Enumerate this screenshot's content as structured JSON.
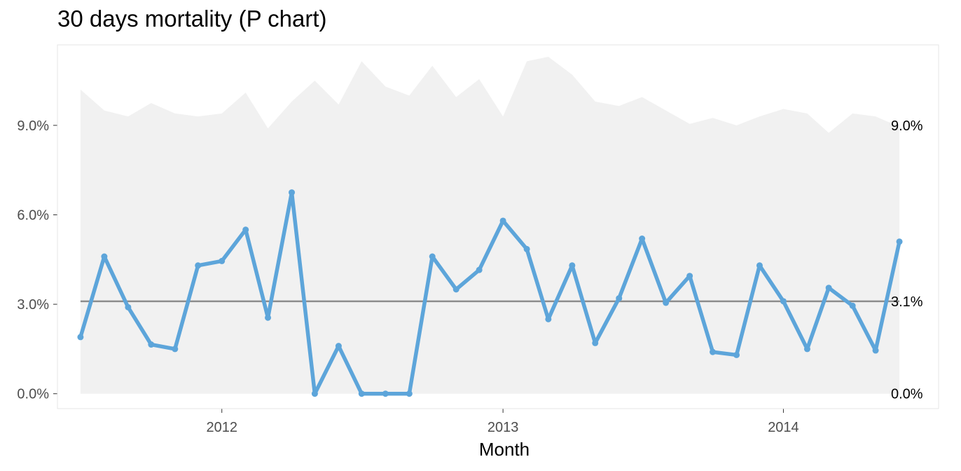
{
  "title": "30 days mortality (P chart)",
  "colors": {
    "line": "#5DA5DA",
    "center": "#8C8C8C",
    "limits_area": "#F1F1F1",
    "panel_border": "#E6E6E6"
  },
  "chart_data": {
    "type": "line",
    "title": "30 days mortality (P chart)",
    "xlabel": "Month",
    "ylabel": "",
    "x_tick_labels": [
      "2012",
      "2013",
      "2014"
    ],
    "y_tick_labels": [
      "0.0%",
      "3.0%",
      "6.0%",
      "9.0%"
    ],
    "y_ticks": [
      0,
      3,
      6,
      9
    ],
    "right_labels": [
      {
        "text": "9.0%",
        "value": 9.0
      },
      {
        "text": "3.1%",
        "value": 3.1
      },
      {
        "text": "0.0%",
        "value": 0.0
      }
    ],
    "ylim": [
      -0.5,
      11.7
    ],
    "xlim": [
      "2011-06-01",
      "2014-07-22"
    ],
    "center_line": 3.1,
    "lower_limit": 0.0,
    "x": [
      "2011-07-01",
      "2011-08-01",
      "2011-09-01",
      "2011-10-01",
      "2011-11-01",
      "2011-12-01",
      "2012-01-01",
      "2012-02-01",
      "2012-03-01",
      "2012-04-01",
      "2012-05-01",
      "2012-06-01",
      "2012-07-01",
      "2012-08-01",
      "2012-09-01",
      "2012-10-01",
      "2012-11-01",
      "2012-12-01",
      "2013-01-01",
      "2013-02-01",
      "2013-03-01",
      "2013-04-01",
      "2013-05-01",
      "2013-06-01",
      "2013-07-01",
      "2013-08-01",
      "2013-09-01",
      "2013-10-01",
      "2013-11-01",
      "2013-12-01",
      "2014-01-01",
      "2014-02-01",
      "2014-03-01",
      "2014-04-01",
      "2014-05-01",
      "2014-06-01"
    ],
    "series": [
      {
        "values": [
          1.9,
          4.6,
          2.9,
          1.65,
          1.5,
          4.3,
          4.45,
          5.5,
          2.55,
          6.75,
          0.0,
          1.6,
          0.0,
          0.0,
          0.0,
          4.6,
          3.5,
          4.15,
          5.8,
          4.85,
          2.5,
          4.3,
          1.7,
          3.2,
          5.2,
          3.05,
          3.95,
          1.4,
          1.3,
          4.3,
          3.1,
          1.5,
          3.55,
          2.95,
          1.45,
          5.1
        ]
      }
    ],
    "upper_limit": [
      10.2,
      9.5,
      9.3,
      9.75,
      9.4,
      9.3,
      9.4,
      10.1,
      8.9,
      9.8,
      10.5,
      9.7,
      11.15,
      10.3,
      10.0,
      11.0,
      9.95,
      10.55,
      9.3,
      11.15,
      11.3,
      10.7,
      9.8,
      9.65,
      9.95,
      9.5,
      9.05,
      9.25,
      9.0,
      9.3,
      9.55,
      9.4,
      8.75,
      9.4,
      9.3,
      8.95
    ]
  }
}
